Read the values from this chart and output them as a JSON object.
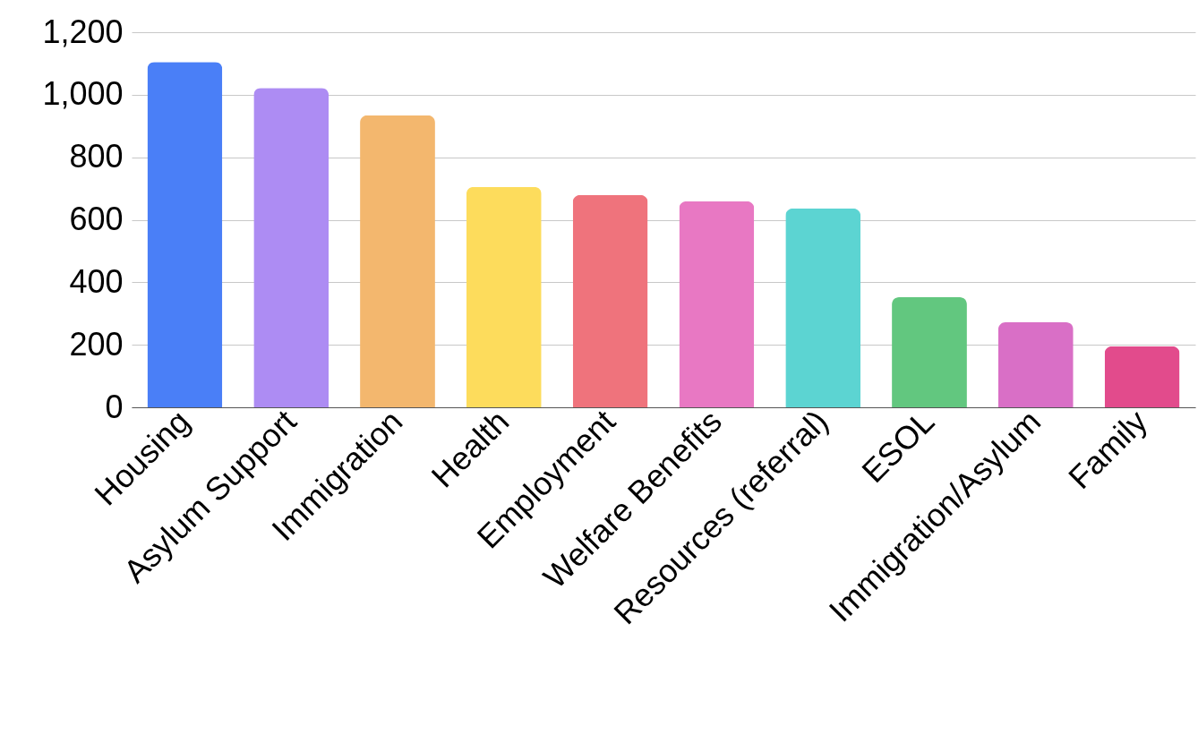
{
  "chart_data": {
    "type": "bar",
    "categories": [
      "Housing",
      "Asylum Support",
      "Immigration",
      "Health",
      "Employment",
      "Welfare Benefits",
      "Resources (referral)",
      "ESOL",
      "Immigration/Asylum",
      "Family"
    ],
    "values": [
      1105,
      1022,
      934,
      705,
      679,
      659,
      636,
      352,
      272,
      195
    ],
    "colors": [
      "#4a7ff7",
      "#ad8cf3",
      "#f3b76e",
      "#fddc5c",
      "#ef737c",
      "#e878c3",
      "#5cd4d2",
      "#62c77f",
      "#d96fc6",
      "#e24b8c"
    ],
    "ylim": [
      0,
      1200
    ],
    "yticks": [
      0,
      200,
      400,
      600,
      800,
      {
        "value": 1000,
        "label": "1,000"
      },
      {
        "value": 1200,
        "label": "1,200"
      }
    ],
    "grid": "y"
  }
}
